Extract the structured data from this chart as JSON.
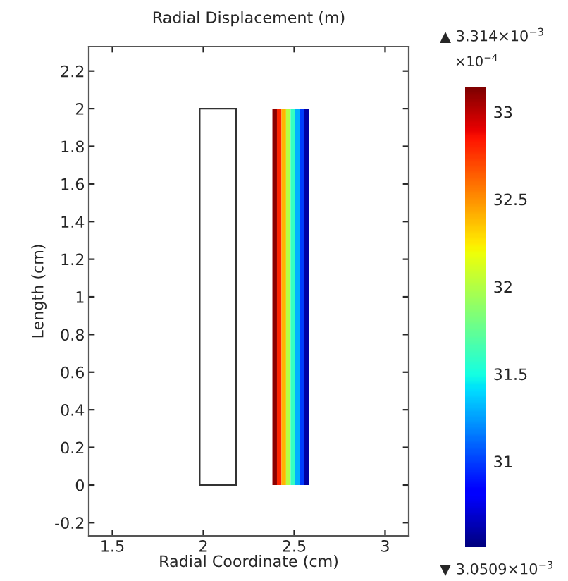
{
  "chart_data": {
    "type": "heatmap",
    "title": "Radial Displacement (m)",
    "xlabel": "Radial Coordinate (cm)",
    "ylabel": "Length (cm)",
    "x": [
      2.3925,
      2.4175,
      2.4425,
      2.4675,
      2.4925,
      2.5175,
      2.5425,
      2.5675
    ],
    "cells": [
      [
        33.1,
        32.8,
        32.4,
        32.0,
        31.6,
        31.3,
        31.0,
        30.6
      ]
    ],
    "clim": [
      30.509,
      33.14
    ],
    "cticks": [
      31,
      31.5,
      32,
      32.5,
      33
    ],
    "clabel": "×10$^{−4}$",
    "xlim": [
      1.37,
      3.13
    ],
    "ylim": [
      -0.27,
      2.33
    ],
    "xticks": [
      1.5,
      2,
      2.5,
      3
    ],
    "yticks": [
      -0.2,
      0,
      0.2,
      0.4,
      0.6,
      0.8,
      1,
      1.2,
      1.4,
      1.6,
      1.8,
      2,
      2.2
    ],
    "grid": false,
    "annotations": [
      "▲ 3.314×10$^{−3}$",
      "▼ 3.0509×10$^{−3}$"
    ]
  }
}
